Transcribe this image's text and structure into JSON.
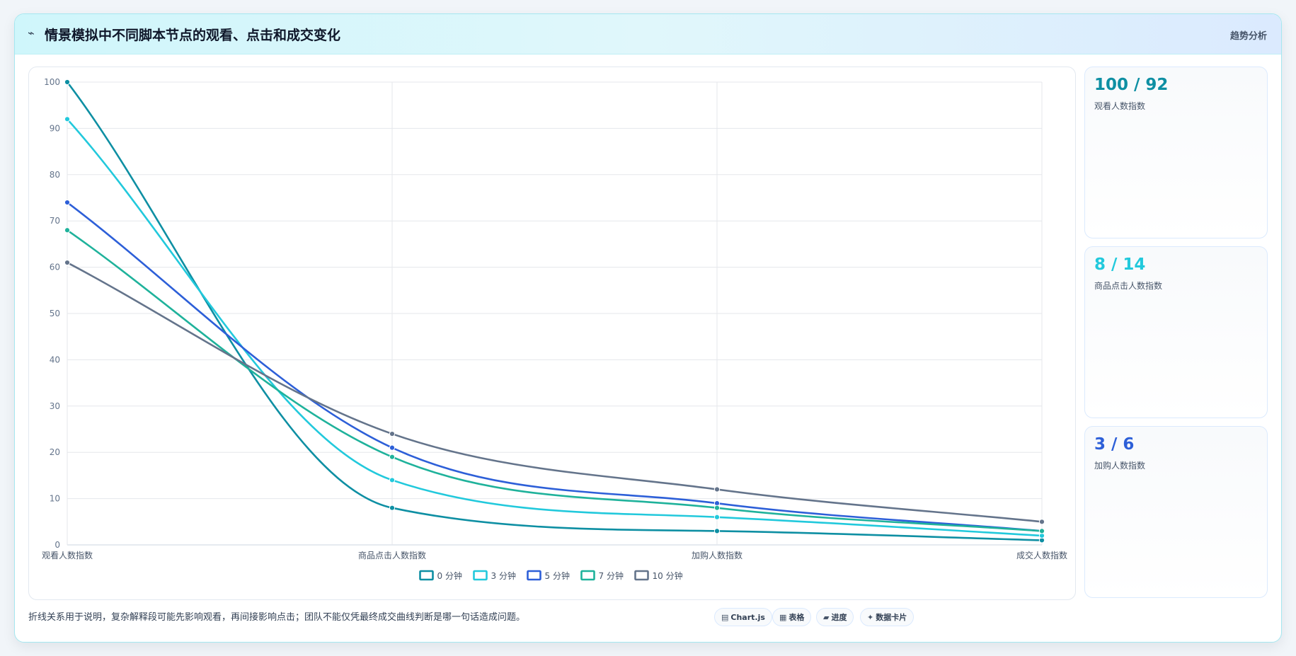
{
  "header": {
    "icon": "trend-line-icon",
    "title": "情景模拟中不同脚本节点的观看、点击和成交变化",
    "tag": "趋势分析"
  },
  "stats": [
    {
      "value": "100 / 92",
      "label": "观看人数指数",
      "color": "#0e8fa3"
    },
    {
      "value": "8 / 14",
      "label": "商品点击人数指数",
      "color": "#22c9dc"
    },
    {
      "value": "3 / 6",
      "label": "加购人数指数",
      "color": "#2d5fd8"
    }
  ],
  "footer": {
    "note": "折线关系用于说明，复杂解释段可能先影响观看，再间接影响点击；团队不能仅凭最终成交曲线判断是哪一句话造成问题。",
    "pills": [
      {
        "icon": "chart-icon",
        "glyph": "▤",
        "label": "Chart.js"
      },
      {
        "icon": "table-icon",
        "glyph": "▦",
        "label": "表格"
      },
      {
        "icon": "progress-icon",
        "glyph": "▰",
        "label": "进度"
      },
      {
        "icon": "sparkle-icon",
        "glyph": "✦",
        "label": "数据卡片"
      }
    ]
  },
  "chart_data": {
    "type": "line",
    "categories": [
      "观看人数指数",
      "商品点击人数指数",
      "加购人数指数",
      "成交人数指数"
    ],
    "ylim": [
      0,
      100
    ],
    "yticks": [
      0,
      10,
      20,
      30,
      40,
      50,
      60,
      70,
      80,
      90,
      100
    ],
    "grid": true,
    "legend_position": "bottom",
    "series": [
      {
        "name": "0 分钟",
        "values": [
          100,
          8,
          3,
          1
        ],
        "color": "#0e8fa3"
      },
      {
        "name": "3 分钟",
        "values": [
          92,
          14,
          6,
          2
        ],
        "color": "#22c9dc"
      },
      {
        "name": "5 分钟",
        "values": [
          74,
          21,
          9,
          3
        ],
        "color": "#2d5fd8"
      },
      {
        "name": "7 分钟",
        "values": [
          68,
          19,
          8,
          3
        ],
        "color": "#1fb29b"
      },
      {
        "name": "10 分钟",
        "values": [
          61,
          24,
          12,
          5
        ],
        "color": "#64748b"
      }
    ]
  }
}
